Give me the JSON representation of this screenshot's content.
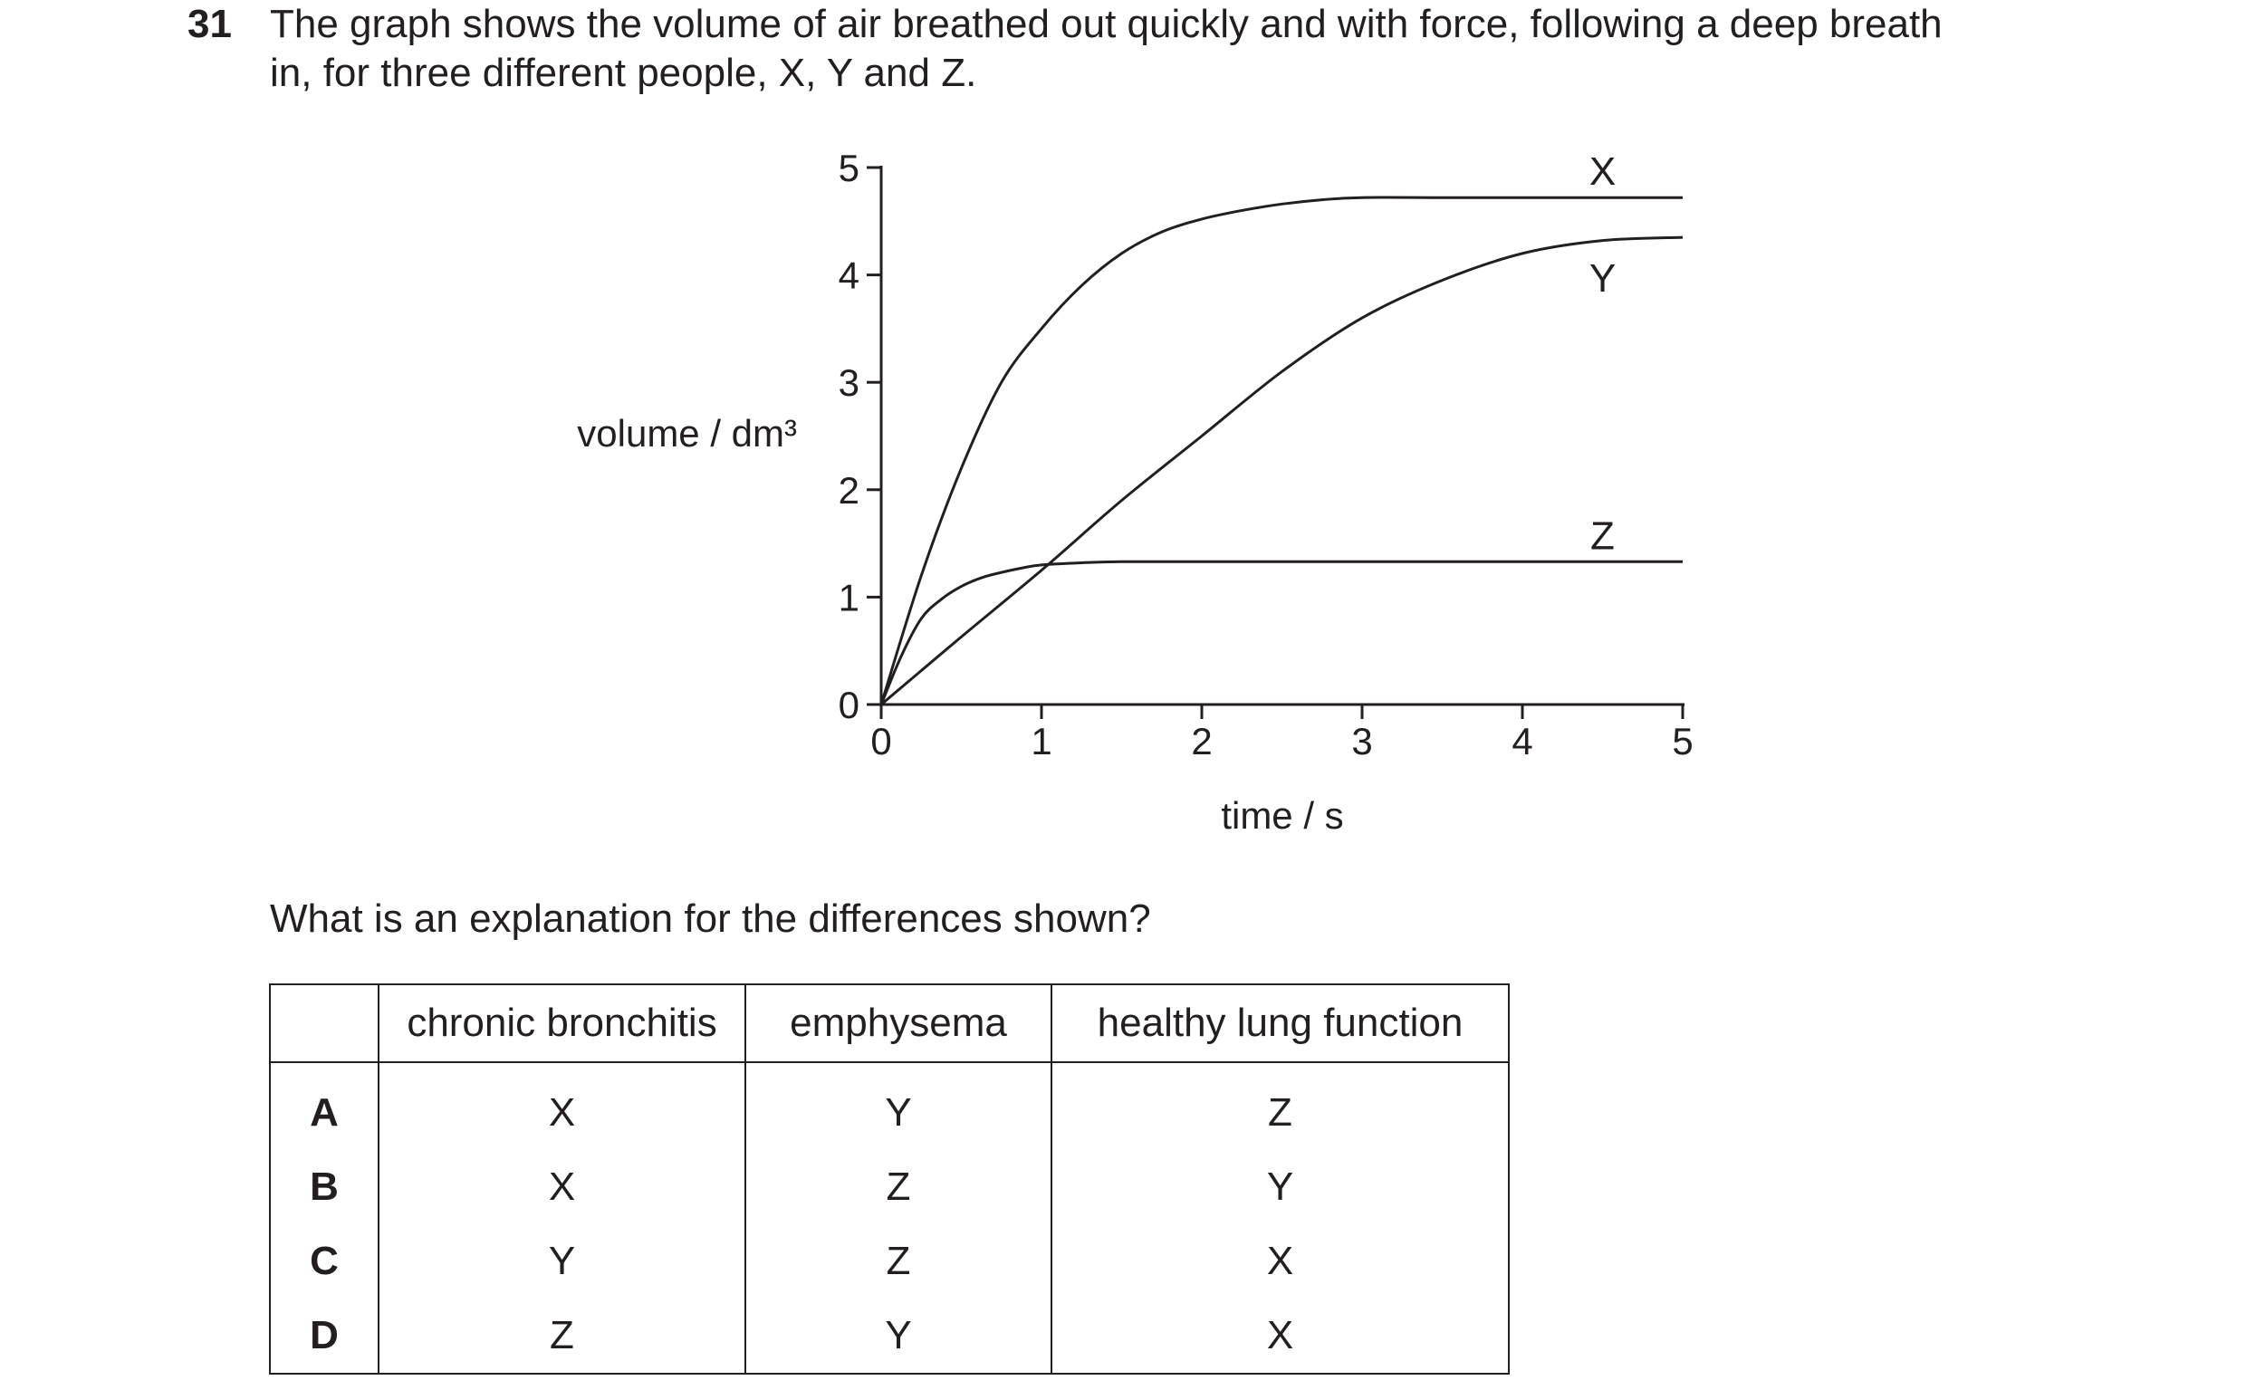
{
  "question": {
    "number": "31",
    "stem_line1": "The graph shows the volume of air breathed out quickly and with force, following a deep breath",
    "stem_line2": "in, for three different people, X, Y and Z.",
    "prompt": "What is an explanation for the differences shown?"
  },
  "chart_data": {
    "type": "line",
    "ylabel": "volume / dm³",
    "xlabel": "time / s",
    "xlim": [
      0,
      5
    ],
    "ylim": [
      0,
      5
    ],
    "x_ticks": [
      "0",
      "1",
      "2",
      "3",
      "4",
      "5"
    ],
    "y_ticks": [
      "0",
      "1",
      "2",
      "3",
      "4",
      "5"
    ],
    "grid": false,
    "series": [
      {
        "name": "X",
        "x": [
          0,
          0.25,
          0.5,
          0.75,
          1,
          1.25,
          1.5,
          1.75,
          2,
          2.25,
          2.5,
          2.75,
          3,
          3.5,
          4,
          4.5,
          5
        ],
        "y": [
          0,
          1.2,
          2.2,
          3.0,
          3.5,
          3.9,
          4.2,
          4.4,
          4.52,
          4.6,
          4.66,
          4.7,
          4.72,
          4.72,
          4.72,
          4.72,
          4.72
        ]
      },
      {
        "name": "Y",
        "x": [
          0,
          0.5,
          1,
          1.5,
          2,
          2.5,
          3,
          3.5,
          4,
          4.5,
          5
        ],
        "y": [
          0,
          0.63,
          1.25,
          1.9,
          2.5,
          3.1,
          3.6,
          3.95,
          4.2,
          4.32,
          4.35
        ]
      },
      {
        "name": "Z",
        "x": [
          0,
          0.125,
          0.25,
          0.375,
          0.5,
          0.625,
          0.75,
          0.875,
          1,
          1.25,
          1.5,
          2,
          3,
          4,
          5
        ],
        "y": [
          0,
          0.45,
          0.8,
          0.98,
          1.1,
          1.18,
          1.23,
          1.27,
          1.3,
          1.32,
          1.33,
          1.33,
          1.33,
          1.33,
          1.33
        ]
      }
    ]
  },
  "table": {
    "headers": [
      "",
      "chronic bronchitis",
      "emphysema",
      "healthy lung function"
    ],
    "rows": [
      [
        "A",
        "X",
        "Y",
        "Z"
      ],
      [
        "B",
        "X",
        "Z",
        "Y"
      ],
      [
        "C",
        "Y",
        "Z",
        "X"
      ],
      [
        "D",
        "Z",
        "Y",
        "X"
      ]
    ]
  }
}
